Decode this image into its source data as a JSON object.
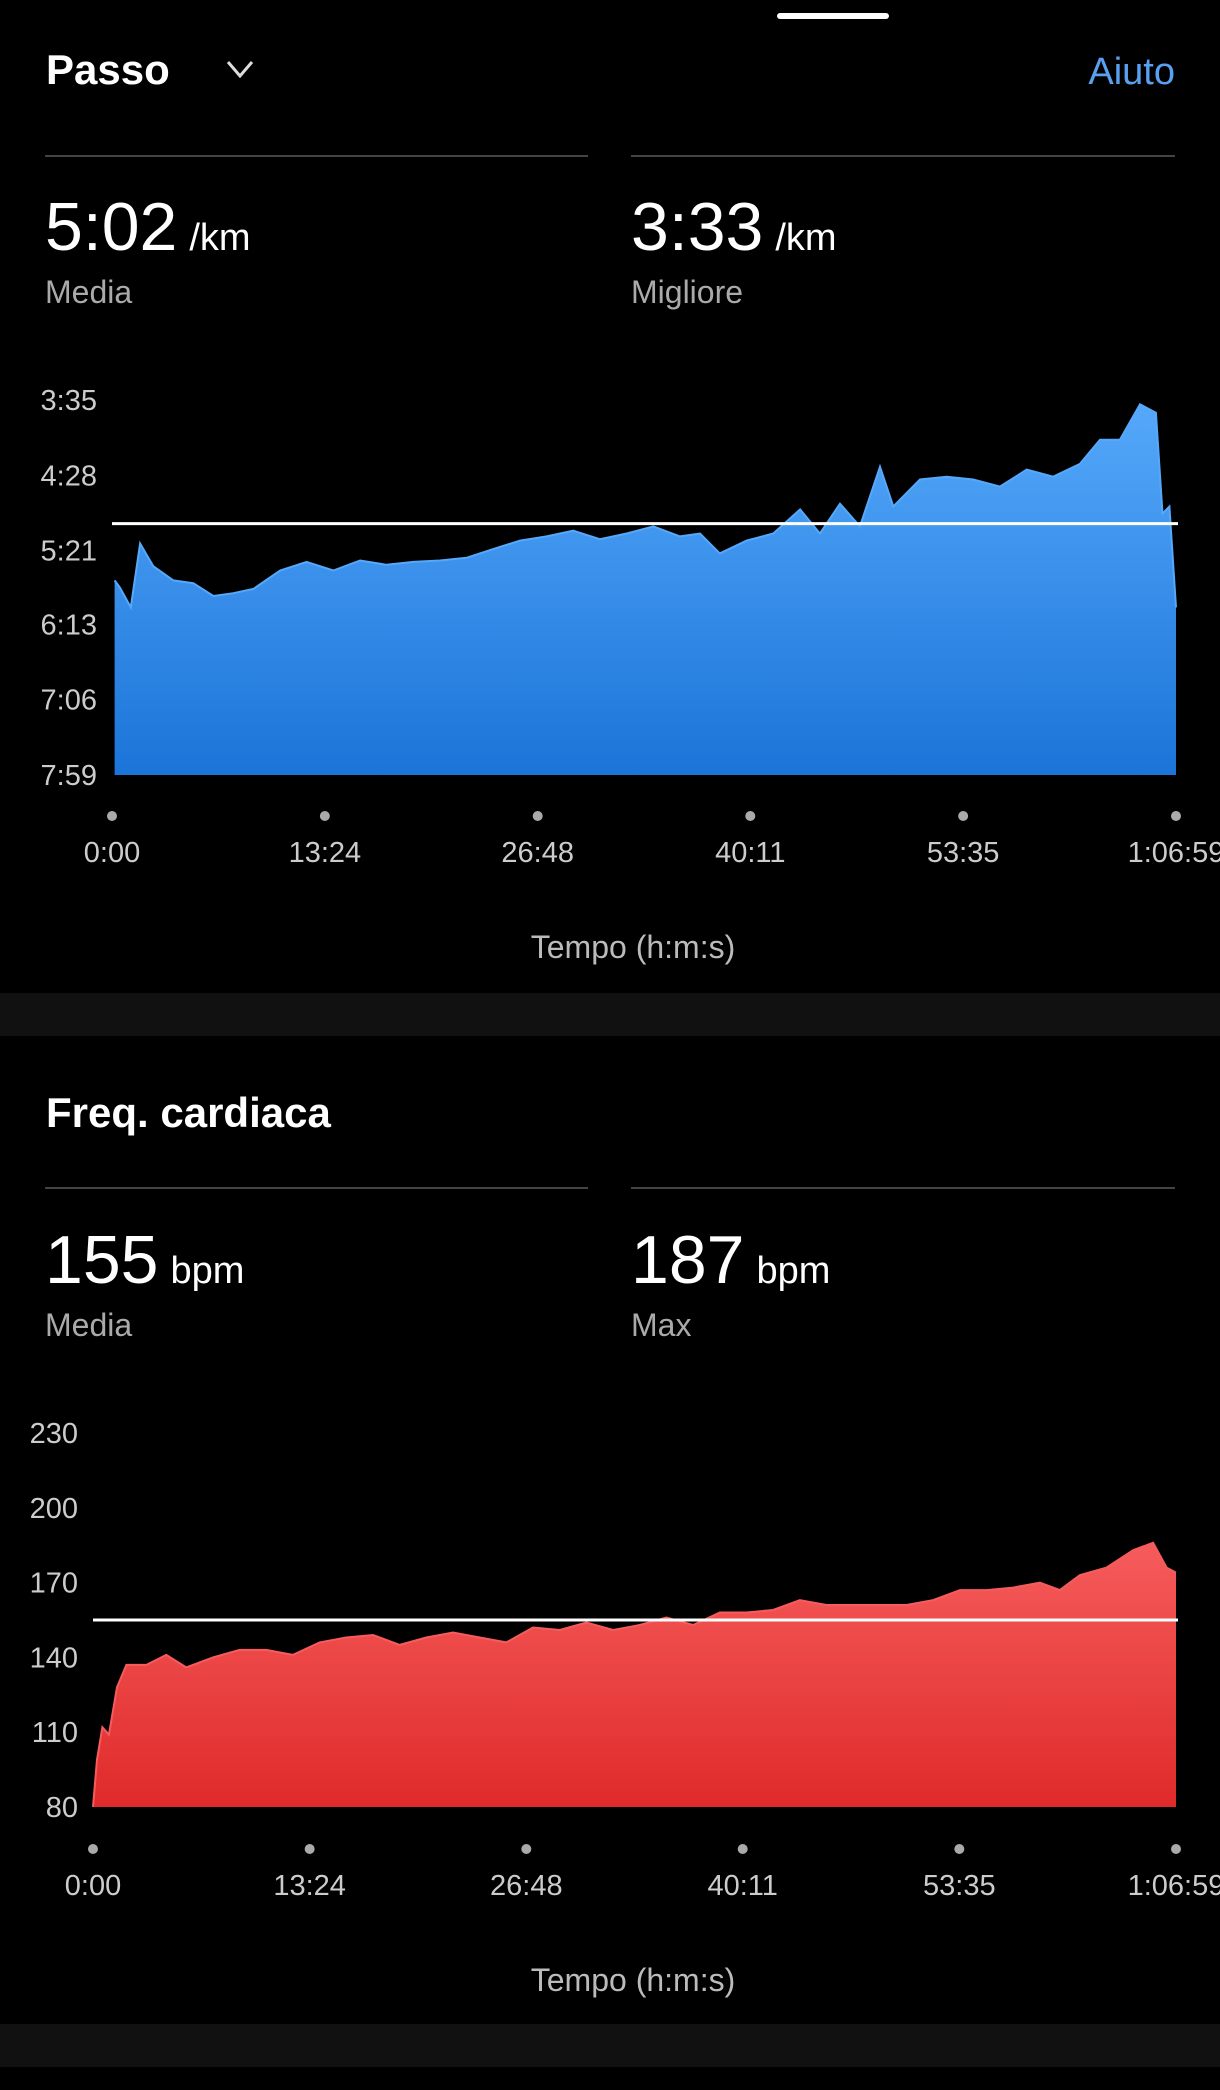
{
  "help": "Aiuto",
  "chart_data": [
    {
      "type": "area",
      "title": "Passo",
      "stats": [
        {
          "value": "5:02",
          "unit": "/km",
          "label": "Media"
        },
        {
          "value": "3:33",
          "unit": "/km",
          "label": "Migliore"
        }
      ],
      "average_line": 302,
      "color": [
        "#55a8fa",
        "#1b74d8"
      ],
      "x": [
        10,
        30,
        71,
        106,
        156,
        232,
        307,
        383,
        458,
        534,
        635,
        735,
        836,
        937,
        1037,
        1138,
        1239,
        1340,
        1440,
        1541,
        1642,
        1742,
        1843,
        1944,
        2045,
        2145,
        2221,
        2296,
        2397,
        2498,
        2599,
        2674,
        2750,
        2825,
        2901,
        2951,
        3052,
        3153,
        3253,
        3354,
        3455,
        3555,
        3656,
        3732,
        3807,
        3883,
        3943,
        3968,
        3994,
        4019
      ],
      "values": [
        342,
        347,
        361,
        316,
        332,
        342,
        344,
        353,
        351,
        348,
        335,
        329,
        335,
        328,
        331,
        329,
        328,
        326,
        320,
        314,
        311,
        307,
        313,
        309,
        304,
        311,
        309,
        323,
        314,
        309,
        292,
        309,
        288,
        304,
        262,
        290,
        271,
        269,
        271,
        276,
        264,
        269,
        260,
        243,
        243,
        218,
        224,
        295,
        290,
        361
      ],
      "ylim": [
        479,
        215
      ],
      "yticks": [
        {
          "value": 215,
          "label": "3:35"
        },
        {
          "value": 268,
          "label": "4:28"
        },
        {
          "value": 321,
          "label": "5:21"
        },
        {
          "value": 373,
          "label": "6:13"
        },
        {
          "value": 426,
          "label": "7:06"
        },
        {
          "value": 479,
          "label": "7:59"
        }
      ],
      "xlim": [
        0,
        4019
      ],
      "xticks": [
        {
          "value": 0,
          "label": "0:00"
        },
        {
          "value": 804,
          "label": "13:24"
        },
        {
          "value": 1608,
          "label": "26:48"
        },
        {
          "value": 2411,
          "label": "40:11"
        },
        {
          "value": 3215,
          "label": "53:35"
        },
        {
          "value": 4019,
          "label": "1:06:59"
        }
      ],
      "x_label": "Tempo (h:m:s)"
    },
    {
      "type": "area",
      "title": "Freq. cardiaca",
      "stats": [
        {
          "value": "155",
          "unit": "bpm",
          "label": "Media"
        },
        {
          "value": "187",
          "unit": "bpm",
          "label": "Max"
        }
      ],
      "average_line": 155,
      "color": [
        "#f65c5c",
        "#df2a2a"
      ],
      "x": [
        0,
        15,
        35,
        59,
        89,
        124,
        198,
        272,
        346,
        445,
        544,
        643,
        742,
        841,
        940,
        1039,
        1138,
        1237,
        1336,
        1435,
        1534,
        1633,
        1732,
        1831,
        1930,
        2029,
        2128,
        2227,
        2326,
        2425,
        2524,
        2623,
        2722,
        2821,
        2920,
        3019,
        3118,
        3217,
        3316,
        3415,
        3514,
        3588,
        3662,
        3761,
        3860,
        3934,
        3984,
        4019
      ],
      "values": [
        80,
        99,
        112,
        109,
        128,
        137,
        137,
        141,
        136,
        140,
        143,
        143,
        141,
        146,
        148,
        149,
        145,
        148,
        150,
        148,
        146,
        152,
        151,
        154,
        151,
        153,
        156,
        153,
        158,
        158,
        159,
        163,
        161,
        161,
        161,
        161,
        163,
        167,
        167,
        168,
        170,
        167,
        173,
        176,
        183,
        186,
        176,
        174
      ],
      "ylim": [
        80,
        230
      ],
      "yticks": [
        80,
        110,
        140,
        170,
        200,
        230
      ],
      "xlim": [
        0,
        4019
      ],
      "xticks": [
        {
          "value": 0,
          "label": "0:00"
        },
        {
          "value": 804,
          "label": "13:24"
        },
        {
          "value": 1608,
          "label": "26:48"
        },
        {
          "value": 2411,
          "label": "40:11"
        },
        {
          "value": 3215,
          "label": "53:35"
        },
        {
          "value": 4019,
          "label": "1:06:59"
        }
      ],
      "x_label": "Tempo (h:m:s)"
    }
  ]
}
